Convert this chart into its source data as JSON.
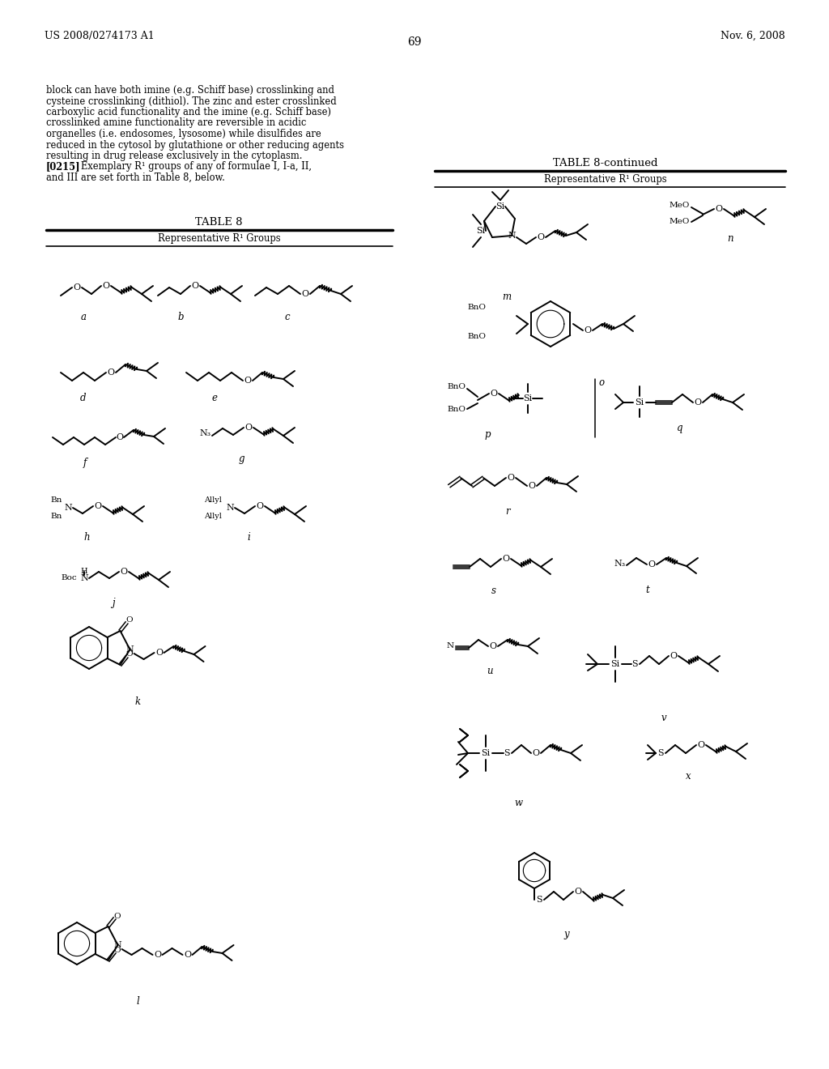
{
  "patent_left": "US 2008/0274173 A1",
  "patent_right": "Nov. 6, 2008",
  "page_number": "69",
  "background": "#ffffff",
  "text_color": "#000000",
  "body_text_lines": [
    "block can have both imine (e.g. Schiff base) crosslinking and",
    "cysteine crosslinking (dithiol). The zinc and ester crosslinked",
    "carboxylic acid functionality and the imine (e.g. Schiff base)",
    "crosslinked amine functionality are reversible in acidic",
    "organelles (i.e. endosomes, lysosome) while disulfides are",
    "reduced in the cytosol by glutathione or other reducing agents",
    "resulting in drug release exclusively in the cytoplasm."
  ],
  "body_text_line8_bold": "[0215]",
  "body_text_line8_rest": "   Exemplary R¹ groups of any of formulae I, I-a, II,",
  "body_text_line9": "and III are set forth in Table 8, below.",
  "table8_title": "TABLE 8",
  "table8cont_title": "TABLE 8-continued",
  "table_header": "Representative R¹ Groups"
}
